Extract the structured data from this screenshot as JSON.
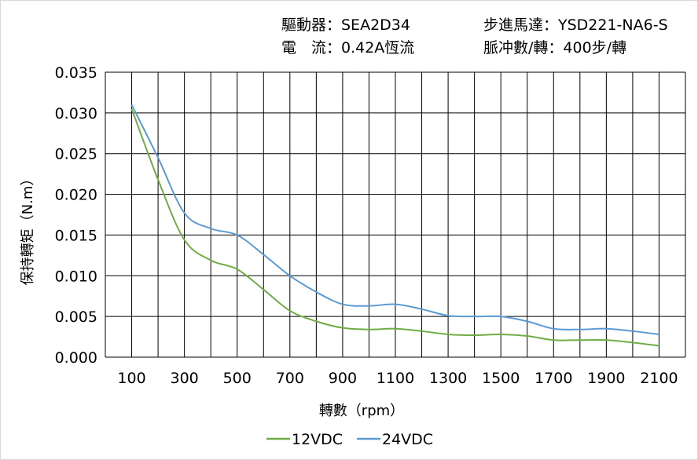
{
  "header": {
    "driver": "驅動器：SEA2D34",
    "motor": "步進馬達：YSD221-NA6-S",
    "current": "電　流：0.42A恆流",
    "pulses": "脈冲數/轉：400步/轉"
  },
  "chart_data": {
    "type": "line",
    "xlabel": "轉數（rpm）",
    "ylabel": "保持轉矩（N.m）",
    "xlim": [
      0,
      2200
    ],
    "ylim": [
      0,
      0.035
    ],
    "x_ticks": [
      "100",
      "300",
      "500",
      "700",
      "900",
      "1100",
      "1300",
      "1500",
      "1700",
      "1900",
      "2100"
    ],
    "y_ticks": [
      "0.000",
      "0.005",
      "0.010",
      "0.015",
      "0.020",
      "0.025",
      "0.030",
      "0.035"
    ],
    "grid": true,
    "legend": "bottom",
    "x": [
      100,
      200,
      300,
      400,
      500,
      600,
      700,
      800,
      900,
      1000,
      1100,
      1200,
      1300,
      1400,
      1500,
      1600,
      1700,
      1800,
      1900,
      2000,
      2100
    ],
    "series": [
      {
        "name": "12VDC",
        "color": "#70ad47",
        "values": [
          0.0305,
          0.0218,
          0.0144,
          0.0119,
          0.0108,
          0.0083,
          0.0057,
          0.0044,
          0.0036,
          0.0034,
          0.0035,
          0.0032,
          0.0028,
          0.0027,
          0.0028,
          0.0026,
          0.0021,
          0.0021,
          0.0021,
          0.0018,
          0.0014
        ]
      },
      {
        "name": "24VDC",
        "color": "#5b9bd5",
        "values": [
          0.031,
          0.0245,
          0.0177,
          0.0158,
          0.015,
          0.0126,
          0.01,
          0.008,
          0.0065,
          0.0063,
          0.0065,
          0.0059,
          0.0051,
          0.005,
          0.005,
          0.0044,
          0.0035,
          0.0034,
          0.0035,
          0.0032,
          0.0028
        ]
      }
    ]
  }
}
